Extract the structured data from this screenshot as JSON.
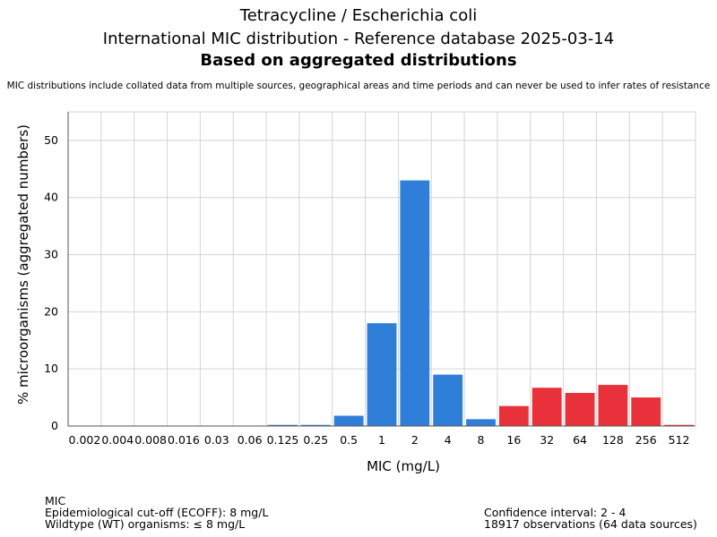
{
  "header": {
    "title_line1": "Tetracycline / Escherichia coli",
    "title_line2": "International MIC distribution - Reference database 2025-03-14",
    "title_line3": "Based on aggregated distributions",
    "subtitle": "MIC distributions include collated data from multiple sources, geographical areas and time periods and can never be used to infer rates of resistance"
  },
  "colors": {
    "wildtype": "#2f7fd8",
    "resistant": "#e8313a",
    "grid": "#d4d4d4"
  },
  "chart_data": {
    "type": "bar",
    "xlabel": "MIC (mg/L)",
    "ylabel": "% microorganisms (aggregated numbers)",
    "ylim": [
      0,
      55
    ],
    "yticks": [
      0,
      10,
      20,
      30,
      40,
      50
    ],
    "grid": true,
    "categories": [
      "0.002",
      "0.004",
      "0.008",
      "0.016",
      "0.03",
      "0.06",
      "0.125",
      "0.25",
      "0.5",
      "1",
      "2",
      "4",
      "8",
      "16",
      "32",
      "64",
      "128",
      "256",
      "512"
    ],
    "values": [
      0,
      0,
      0,
      0,
      0,
      0,
      0.2,
      0.2,
      1.8,
      18,
      43,
      9,
      1.2,
      3.5,
      6.7,
      5.8,
      7.2,
      5.0,
      0.2
    ],
    "wildtype_upto": "8"
  },
  "footer": {
    "left": [
      "MIC",
      "Epidemiological cut-off (ECOFF): 8 mg/L",
      "Wildtype (WT) organisms: ≤ 8 mg/L"
    ],
    "right": [
      "Confidence interval: 2 - 4",
      "18917 observations (64 data sources)"
    ]
  }
}
